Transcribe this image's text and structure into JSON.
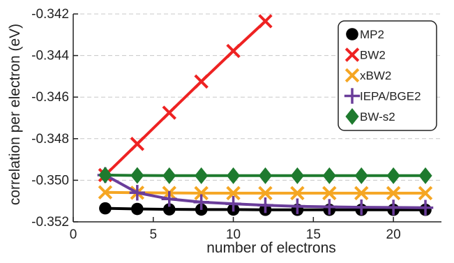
{
  "chart_data": {
    "type": "line",
    "title": "",
    "xlabel": "number of electrons",
    "ylabel": "correlation per electron (eV)",
    "xlim": [
      0,
      23
    ],
    "ylim": [
      -0.352,
      -0.342
    ],
    "xticks": [
      0,
      5,
      10,
      15,
      20
    ],
    "xtick_labels": [
      "0",
      "5",
      "10",
      "15",
      "20"
    ],
    "yticks": [
      -0.352,
      -0.35,
      -0.348,
      -0.346,
      -0.344,
      -0.342
    ],
    "ytick_labels": [
      "-0.352",
      "-0.350",
      "-0.348",
      "-0.346",
      "-0.344",
      "-0.342"
    ],
    "grid": "horizontal dashed",
    "legend_position": "top-right",
    "series": [
      {
        "name": "MP2",
        "color": "#000000",
        "marker": "circle",
        "x": [
          2,
          4,
          6,
          8,
          10,
          12,
          14,
          16,
          18,
          20,
          22
        ],
        "y": [
          -0.35135,
          -0.35138,
          -0.3514,
          -0.35141,
          -0.35141,
          -0.35142,
          -0.35142,
          -0.35142,
          -0.35142,
          -0.35142,
          -0.35142
        ]
      },
      {
        "name": "BW2",
        "color": "#ee2222",
        "marker": "x",
        "x": [
          2,
          4,
          6,
          8,
          10,
          12
        ],
        "y": [
          -0.34975,
          -0.34825,
          -0.34675,
          -0.34525,
          -0.34378,
          -0.34235
        ]
      },
      {
        "name": "xBW2",
        "color": "#f5a623",
        "marker": "x",
        "x": [
          2,
          4,
          6,
          8,
          10,
          12,
          14,
          16,
          18,
          20,
          22
        ],
        "y": [
          -0.35058,
          -0.3506,
          -0.35061,
          -0.35062,
          -0.35062,
          -0.35062,
          -0.35062,
          -0.35062,
          -0.35062,
          -0.35062,
          -0.35062
        ]
      },
      {
        "name": "IEPA/BGE2",
        "color": "#6a3d9a",
        "marker": "plus",
        "x": [
          2,
          4,
          6,
          8,
          10,
          12,
          14,
          16,
          18,
          20,
          22
        ],
        "y": [
          -0.34975,
          -0.3506,
          -0.3509,
          -0.35105,
          -0.35113,
          -0.3512,
          -0.35125,
          -0.35128,
          -0.3513,
          -0.35131,
          -0.35132
        ]
      },
      {
        "name": "BW-s2",
        "color": "#1e7a2e",
        "marker": "diamond",
        "x": [
          2,
          4,
          6,
          8,
          10,
          12,
          14,
          16,
          18,
          20,
          22
        ],
        "y": [
          -0.34975,
          -0.34977,
          -0.34978,
          -0.34978,
          -0.34978,
          -0.34978,
          -0.34978,
          -0.34978,
          -0.34978,
          -0.34978,
          -0.34978
        ]
      }
    ]
  }
}
